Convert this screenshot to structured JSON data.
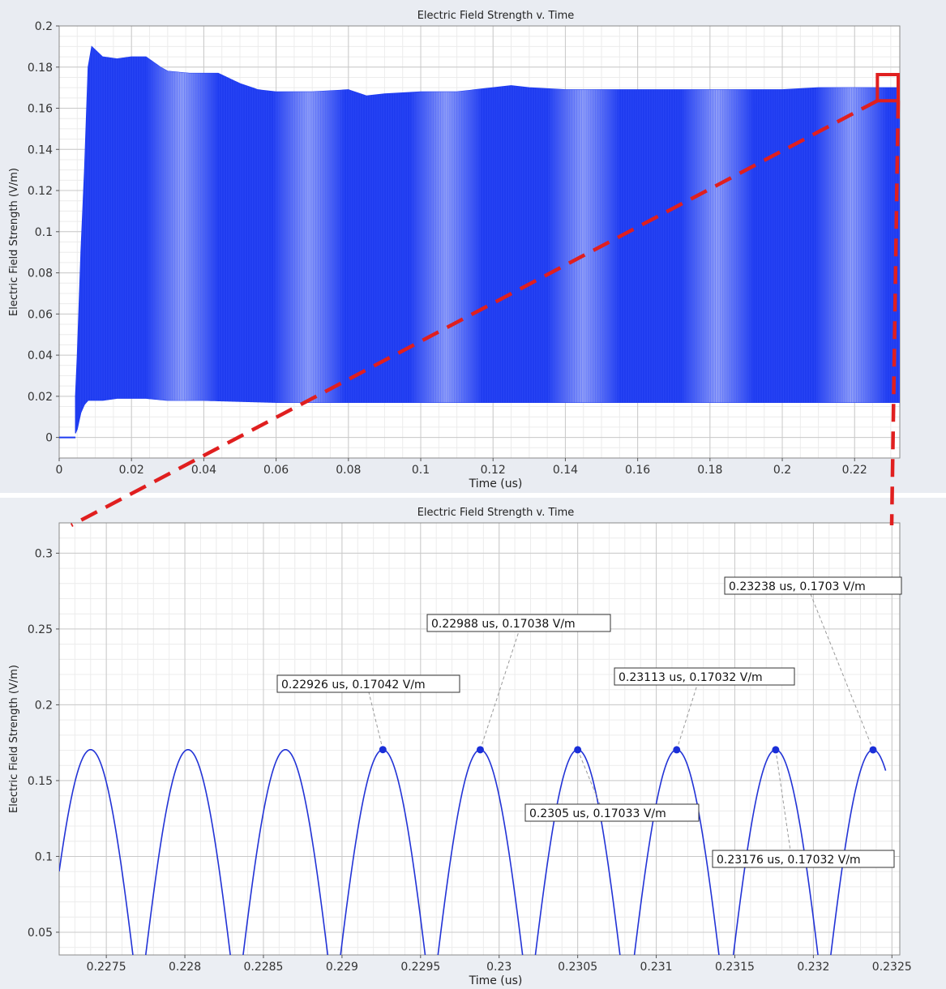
{
  "chart_data": [
    {
      "type": "line",
      "title": "Electric Field Strength v. Time",
      "xlabel": "Time (us)",
      "ylabel": "Electric Field Strength (V/m)",
      "xlim": [
        0,
        0.2325
      ],
      "ylim": [
        -0.01,
        0.2
      ],
      "x_ticks": [
        "0",
        "0.02",
        "0.04",
        "0.06",
        "0.08",
        "0.1",
        "0.12",
        "0.14",
        "0.16",
        "0.18",
        "0.2",
        "0.22"
      ],
      "y_ticks": [
        "0",
        "0.02",
        "0.04",
        "0.06",
        "0.08",
        "0.1",
        "0.12",
        "0.14",
        "0.16",
        "0.18",
        "0.2"
      ],
      "grid": true,
      "series": [
        {
          "color": "#1f3cf0",
          "upper_envelope": {
            "x": [
              0.0,
              0.004,
              0.005,
              0.006,
              0.007,
              0.008,
              0.009,
              0.012,
              0.016,
              0.02,
              0.024,
              0.028,
              0.03,
              0.036,
              0.04,
              0.044,
              0.05,
              0.055,
              0.06,
              0.065,
              0.07,
              0.08,
              0.085,
              0.09,
              0.1,
              0.11,
              0.12,
              0.125,
              0.13,
              0.14,
              0.15,
              0.16,
              0.17,
              0.18,
              0.19,
              0.2,
              0.21,
              0.22,
              0.2325
            ],
            "y": [
              0.0,
              0.0,
              0.04,
              0.09,
              0.13,
              0.18,
              0.19,
              0.185,
              0.184,
              0.185,
              0.185,
              0.18,
              0.178,
              0.177,
              0.177,
              0.177,
              0.172,
              0.169,
              0.168,
              0.168,
              0.168,
              0.169,
              0.166,
              0.167,
              0.168,
              0.168,
              0.17,
              0.171,
              0.17,
              0.169,
              0.169,
              0.169,
              0.169,
              0.169,
              0.169,
              0.169,
              0.17,
              0.17,
              0.17
            ]
          },
          "lower_envelope": {
            "x": [
              0.0,
              0.004,
              0.005,
              0.006,
              0.007,
              0.008,
              0.012,
              0.016,
              0.02,
              0.024,
              0.03,
              0.04,
              0.06,
              0.08,
              0.1,
              0.12,
              0.14,
              0.16,
              0.18,
              0.2,
              0.22,
              0.2325
            ],
            "y": [
              0.0,
              0.0,
              0.004,
              0.012,
              0.016,
              0.018,
              0.018,
              0.019,
              0.019,
              0.019,
              0.018,
              0.018,
              0.017,
              0.017,
              0.017,
              0.017,
              0.017,
              0.017,
              0.017,
              0.017,
              0.017,
              0.017
            ]
          }
        }
      ],
      "zoom_box": {
        "x": [
          0.2272,
          0.2325
        ],
        "y": [
          0.166,
          0.174
        ]
      }
    },
    {
      "type": "line",
      "title": "Electric Field Strength v. Time",
      "xlabel": "Time (us)",
      "ylabel": "Electric Field Strength (V/m)",
      "xlim": [
        0.2272,
        0.23255
      ],
      "ylim": [
        0.035,
        0.32
      ],
      "x_ticks": [
        "0.2275",
        "0.228",
        "0.2285",
        "0.229",
        "0.2295",
        "0.23",
        "0.2305",
        "0.231",
        "0.2315",
        "0.232",
        "0.2325"
      ],
      "y_ticks": [
        "0.05",
        "0.1",
        "0.15",
        "0.2",
        "0.25",
        "0.3"
      ],
      "grid": true,
      "series": [
        {
          "color": "#2233d6",
          "peaks_x": [
            0.2274,
            0.22802,
            0.22864,
            0.22926,
            0.22988,
            0.2305,
            0.23113,
            0.23176,
            0.23238
          ],
          "peak_value": 0.1704,
          "half_period": 0.00031,
          "x_end": 0.23246
        }
      ],
      "annotations": [
        {
          "x": 0.22926,
          "y": 0.17042,
          "text": "0.22926 us, 0.17042 V/m"
        },
        {
          "x": 0.22988,
          "y": 0.17038,
          "text": "0.22988 us, 0.17038 V/m"
        },
        {
          "x": 0.2305,
          "y": 0.17033,
          "text": "0.2305 us, 0.17033 V/m"
        },
        {
          "x": 0.23113,
          "y": 0.17032,
          "text": "0.23113 us, 0.17032 V/m"
        },
        {
          "x": 0.23176,
          "y": 0.17032,
          "text": "0.23176 us, 0.17032 V/m"
        },
        {
          "x": 0.23238,
          "y": 0.1703,
          "text": "0.23238 us, 0.1703 V/m"
        }
      ]
    }
  ],
  "colors": {
    "trace_top": "#1f3cf0",
    "trace_bottom": "#2233d6",
    "zoom_indicator": "#e01f1f",
    "marker": "#1a2fd8"
  }
}
